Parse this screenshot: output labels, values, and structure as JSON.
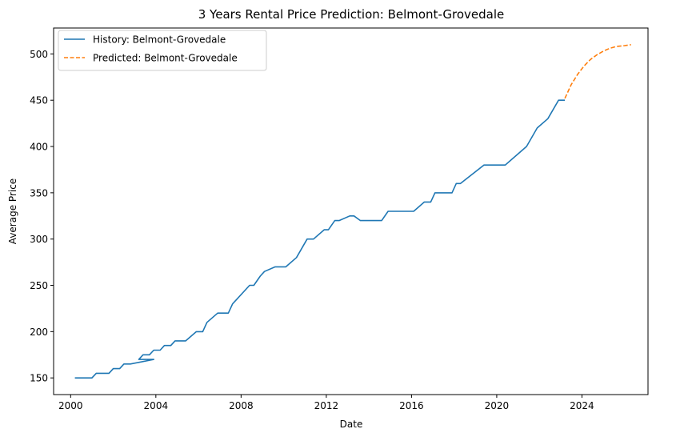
{
  "chart_data": {
    "type": "line",
    "title": "3 Years Rental Price Prediction: Belmont-Grovedale",
    "xlabel": "Date",
    "ylabel": "Average Price",
    "xlim": [
      1999.2,
      2027.1
    ],
    "ylim": [
      132,
      528
    ],
    "x_ticks": [
      2000,
      2004,
      2008,
      2012,
      2016,
      2020,
      2024
    ],
    "y_ticks": [
      150,
      200,
      250,
      300,
      350,
      400,
      450,
      500
    ],
    "grid": false,
    "legend_position": "top-left",
    "colors": {
      "history": "#1f77b4",
      "predicted": "#ff7f0e"
    },
    "series": [
      {
        "name": "History: Belmont-Grovedale",
        "style": "solid",
        "x": [
          2000.2,
          2001.0,
          2001.2,
          2001.8,
          2002.0,
          2002.3,
          2002.5,
          2002.8,
          2003.9,
          2003.2,
          2003.4,
          2003.7,
          2003.9,
          2004.2,
          2004.4,
          2004.7,
          2004.9,
          2005.4,
          2005.9,
          2006.2,
          2006.4,
          2006.9,
          2007.4,
          2007.6,
          2008.4,
          2008.6,
          2008.9,
          2009.1,
          2009.6,
          2010.1,
          2010.6,
          2011.1,
          2011.4,
          2011.9,
          2012.1,
          2012.4,
          2012.6,
          2013.1,
          2013.3,
          2013.6,
          2014.1,
          2014.6,
          2014.9,
          2015.6,
          2016.1,
          2016.6,
          2016.9,
          2017.1,
          2017.6,
          2017.9,
          2018.1,
          2018.3,
          2019.4,
          2020.4,
          2021.4,
          2021.9,
          2022.4,
          2022.9,
          2023.2
        ],
        "y": [
          150,
          150,
          155,
          155,
          160,
          160,
          165,
          165,
          170,
          170,
          175,
          175,
          180,
          180,
          185,
          185,
          190,
          190,
          200,
          200,
          210,
          220,
          220,
          230,
          250,
          250,
          260,
          265,
          270,
          270,
          280,
          300,
          300,
          310,
          310,
          320,
          320,
          325,
          325,
          320,
          320,
          320,
          330,
          330,
          330,
          340,
          340,
          350,
          350,
          350,
          360,
          360,
          380,
          380,
          400,
          420,
          430,
          450,
          450
        ]
      },
      {
        "name": "Predicted: Belmont-Grovedale",
        "style": "dashed",
        "x": [
          2023.2,
          2023.5,
          2023.8,
          2024.1,
          2024.4,
          2024.7,
          2025.0,
          2025.3,
          2025.6,
          2026.0,
          2026.3
        ],
        "y": [
          452,
          467,
          478,
          487,
          494,
          499,
          503,
          506,
          508,
          509,
          510
        ]
      }
    ]
  }
}
